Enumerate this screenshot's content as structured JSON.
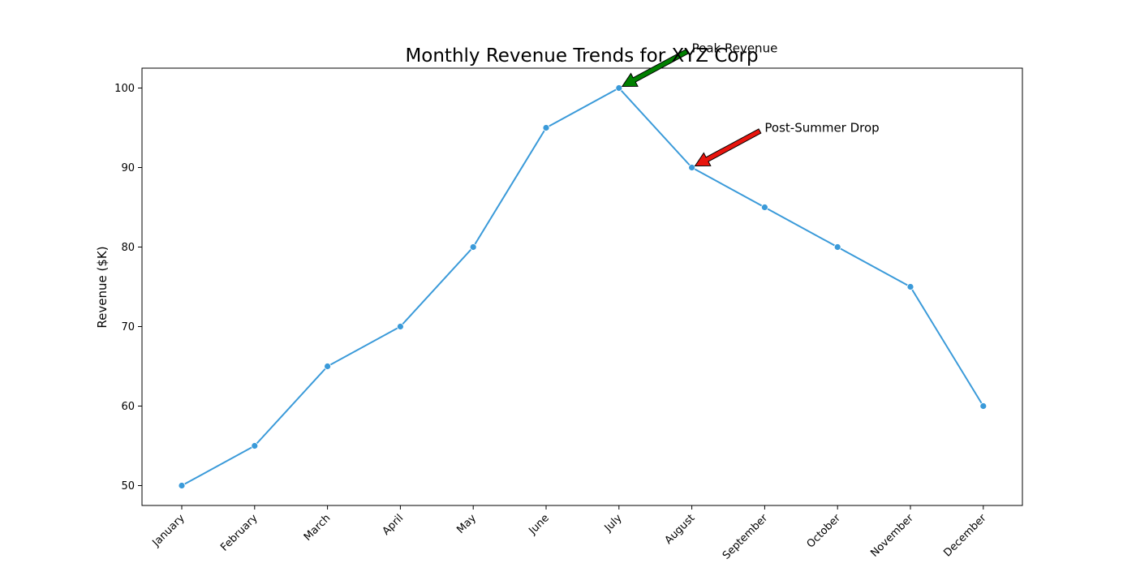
{
  "chart_data": {
    "type": "line",
    "title": "Monthly Revenue Trends for XYZ Corp",
    "xlabel": "",
    "ylabel": "Revenue ($K)",
    "categories": [
      "January",
      "February",
      "March",
      "April",
      "May",
      "June",
      "July",
      "August",
      "September",
      "October",
      "November",
      "December"
    ],
    "series": [
      {
        "values": [
          50,
          55,
          65,
          70,
          80,
          95,
          100,
          90,
          85,
          80,
          75,
          60
        ],
        "color": "#3a9ad9"
      }
    ],
    "ylim": [
      47.5,
      102.5
    ],
    "yticks": [
      50,
      60,
      70,
      80,
      90,
      100
    ],
    "grid": false,
    "legend": "none",
    "annotations": [
      {
        "text": "Peak Revenue",
        "category": "July",
        "value": 100,
        "text_category": "August",
        "text_value": 105,
        "arrow_color": "#008000"
      },
      {
        "text": "Post-Summer Drop",
        "category": "August",
        "value": 90,
        "text_category": "September",
        "text_value": 95,
        "arrow_color": "#e8150e"
      }
    ]
  }
}
